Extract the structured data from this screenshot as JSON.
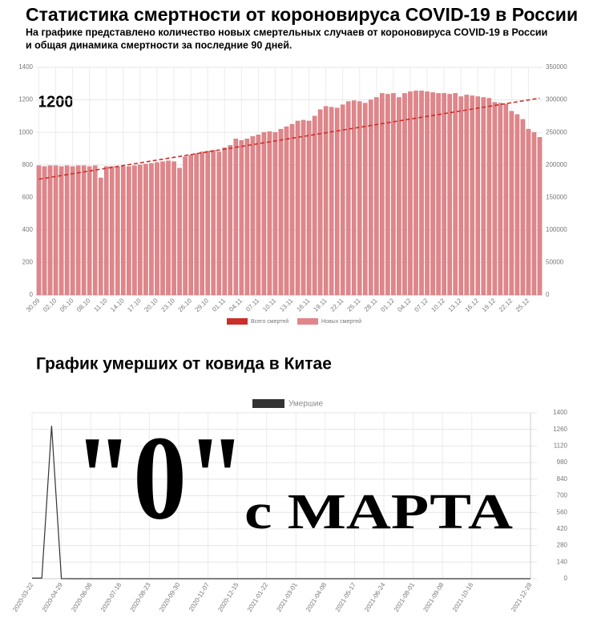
{
  "chart_data": [
    {
      "type": "bar",
      "title": "Статистика смертности от короновируса COVID-19 в России",
      "subtitle": [
        "На графике представлено количество новых смертельных случаев от короновируса COVID-19 в России",
        "и общая динамика смертности за последние 90 дней."
      ],
      "annotation": "1200",
      "categories": [
        "30.09",
        null,
        null,
        "02.10",
        null,
        null,
        "05.10",
        null,
        null,
        "08.10",
        null,
        null,
        "11.10",
        null,
        null,
        "14.10",
        null,
        null,
        "17.10",
        null,
        null,
        "20.10",
        null,
        null,
        "23.10",
        null,
        null,
        "26.10",
        null,
        null,
        "29.10",
        null,
        null,
        "01.11",
        null,
        null,
        "04.11",
        null,
        null,
        "07.11",
        null,
        null,
        "10.11",
        null,
        null,
        "13.11",
        null,
        null,
        "16.11",
        null,
        null,
        "19.11",
        null,
        null,
        "22.11",
        null,
        null,
        "25.11",
        null,
        null,
        "28.11",
        null,
        null,
        "01.12",
        null,
        null,
        "04.12",
        null,
        null,
        "07.12",
        null,
        null,
        "10.12",
        null,
        null,
        "13.12",
        null,
        null,
        "16.12",
        null,
        null,
        "19.12",
        null,
        null,
        "22.12",
        null,
        null,
        "25.12",
        null,
        null
      ],
      "series": [
        {
          "name": "Всего смертей",
          "type": "line",
          "axis": "y2",
          "dashed": true,
          "color": "#c9302c",
          "values": [
            178000,
            179400,
            180800,
            182200,
            183600,
            185000,
            186400,
            187800,
            189200,
            190600,
            192000,
            193400,
            194800,
            196200,
            197600,
            199000,
            200400,
            201800,
            203200,
            204600,
            206000,
            207400,
            208800,
            210200,
            211600,
            213000,
            214400,
            215800,
            217200,
            218600,
            220000,
            221400,
            222800,
            224200,
            225600,
            227000,
            228400,
            229800,
            231200,
            232600,
            234000,
            235400,
            236800,
            238200,
            239600,
            241000,
            242400,
            243800,
            245200,
            246600,
            248000,
            249400,
            250800,
            252200,
            253600,
            255000,
            256400,
            257800,
            259200,
            260600,
            262000,
            263400,
            264800,
            266200,
            267600,
            269000,
            270400,
            271800,
            273200,
            274600,
            276000,
            277400,
            278800,
            280200,
            281600,
            283000,
            284400,
            285800,
            287200,
            288600,
            290000,
            291400,
            292800,
            294200,
            295600,
            297000,
            298400,
            299800,
            301200,
            302600
          ]
        },
        {
          "name": "Новых смертей",
          "type": "bar",
          "color": "#e0868a",
          "values": [
            795,
            790,
            795,
            795,
            790,
            795,
            790,
            795,
            795,
            790,
            795,
            720,
            790,
            790,
            790,
            790,
            790,
            795,
            800,
            805,
            810,
            815,
            820,
            825,
            820,
            780,
            850,
            860,
            870,
            880,
            885,
            890,
            880,
            905,
            920,
            960,
            950,
            960,
            975,
            985,
            1000,
            1005,
            1000,
            1020,
            1035,
            1050,
            1070,
            1075,
            1070,
            1100,
            1140,
            1160,
            1155,
            1150,
            1170,
            1190,
            1195,
            1190,
            1180,
            1200,
            1215,
            1240,
            1235,
            1240,
            1215,
            1240,
            1250,
            1255,
            1255,
            1250,
            1245,
            1240,
            1240,
            1235,
            1240,
            1220,
            1230,
            1225,
            1220,
            1215,
            1210,
            1185,
            1180,
            1175,
            1130,
            1110,
            1080,
            1020,
            1000,
            970
          ]
        }
      ],
      "ylim": [
        0,
        1400
      ],
      "yticks": [
        0,
        200,
        400,
        600,
        800,
        1000,
        1200,
        1400
      ],
      "y2lim": [
        0,
        350000
      ],
      "y2ticks": [
        0,
        50000,
        100000,
        150000,
        200000,
        250000,
        300000,
        350000
      ],
      "grid": true,
      "legend": "bottom"
    },
    {
      "type": "line",
      "title": "График умерших от ковида в Китае",
      "annotations": [
        "\"0\"",
        "с МАРТА"
      ],
      "categories": [
        "2020-03-22",
        null,
        null,
        "2020-04-29",
        null,
        null,
        "2020-06-06",
        null,
        null,
        "2020-07-16",
        null,
        null,
        "2020-08-23",
        null,
        null,
        "2020-09-30",
        null,
        null,
        "2020-11-07",
        null,
        null,
        "2020-12-15",
        null,
        null,
        "2021-01-22",
        null,
        null,
        "2021-03-01",
        null,
        null,
        "2021-04-08",
        null,
        null,
        "2021-05-17",
        null,
        null,
        "2021-06-24",
        null,
        null,
        "2021-08-01",
        null,
        null,
        "2021-09-08",
        null,
        null,
        "2021-10-16",
        null,
        null,
        null,
        null,
        null,
        "2021-12-28"
      ],
      "series": [
        {
          "name": "Умершие",
          "color": "#333333",
          "values": [
            5,
            5,
            1290,
            1,
            0,
            0,
            0,
            0,
            0,
            0,
            0,
            0,
            0,
            0,
            0,
            0,
            0,
            0,
            0,
            0,
            0,
            0,
            0,
            0,
            0,
            0,
            0,
            0,
            0,
            0,
            0,
            0,
            0,
            0,
            0,
            0,
            0,
            0,
            0,
            0,
            0,
            0,
            0,
            0,
            0,
            0,
            0,
            0,
            0,
            0,
            0,
            0
          ]
        }
      ],
      "ylim": [
        0,
        1400
      ],
      "yticks": [
        0,
        140,
        280,
        420,
        560,
        700,
        840,
        980,
        1120,
        1260,
        1400
      ],
      "yaxis_position": "right",
      "grid": true,
      "legend": "top"
    }
  ]
}
